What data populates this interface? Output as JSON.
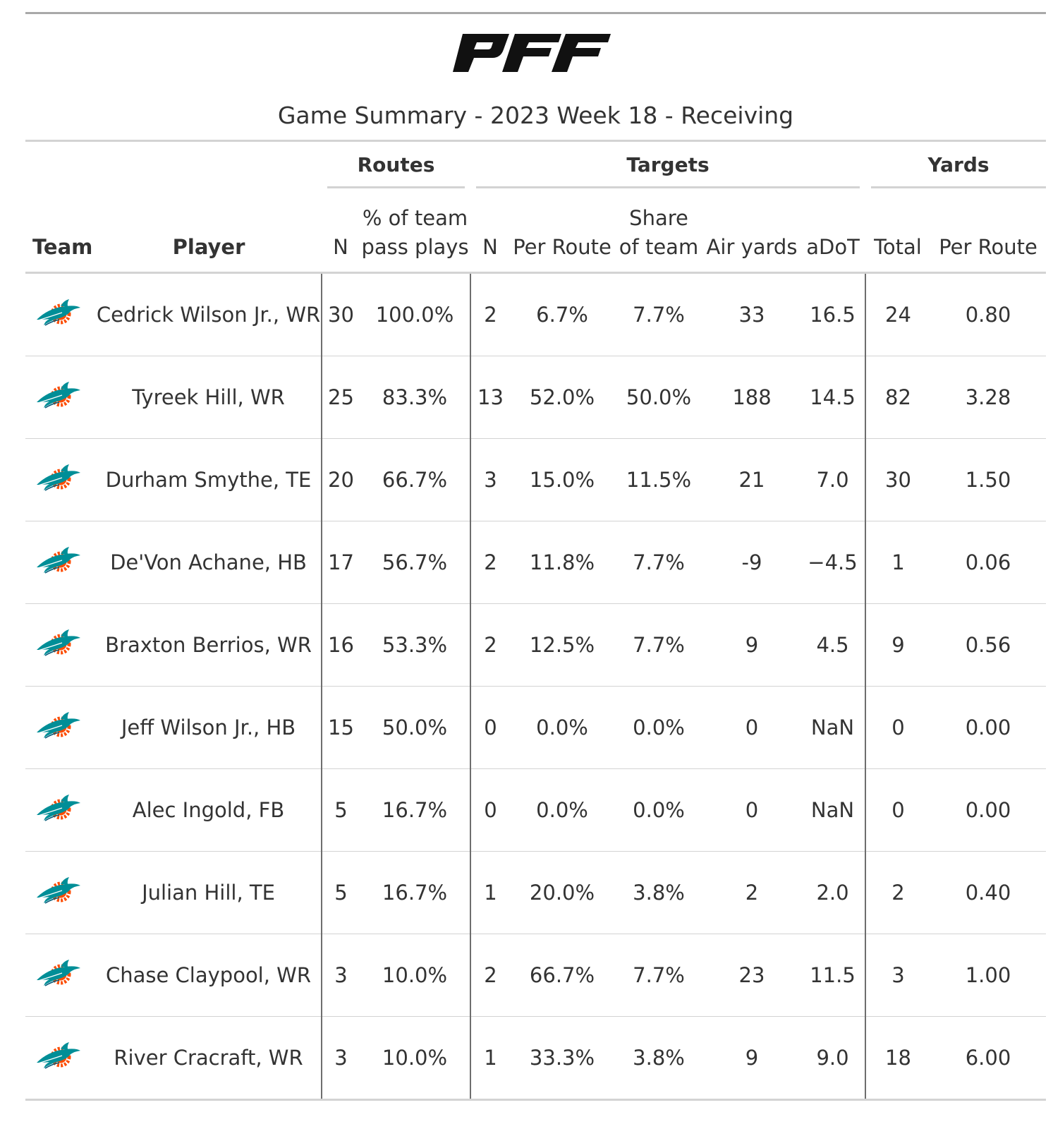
{
  "header": {
    "logo_text": "PFF",
    "title": "Game Summary - 2023 Week 18 - Receiving"
  },
  "table": {
    "spanners": {
      "routes": "Routes",
      "targets": "Targets",
      "yards": "Yards"
    },
    "columns": {
      "team": "Team",
      "player": "Player",
      "routes_n": "N",
      "routes_pct_1": "% of team",
      "routes_pct_2": "pass plays",
      "targets_n": "N",
      "targets_per_route": "Per Route",
      "share_1": "Share",
      "share_2": "of team",
      "air_yards": "Air yards",
      "adot": "aDoT",
      "yards_total": "Total",
      "yards_per_route": "Per Route"
    },
    "team_icon": "miami-dolphins-logo-icon",
    "rows": [
      {
        "player": "Cedrick Wilson Jr., WR",
        "routes_n": "30",
        "routes_pct": "100.0%",
        "targets_n": "2",
        "targets_per_route": "6.7%",
        "share": "7.7%",
        "air_yards": "33",
        "adot": "16.5",
        "yards_total": "24",
        "yards_per_route": "0.80"
      },
      {
        "player": "Tyreek Hill, WR",
        "routes_n": "25",
        "routes_pct": "83.3%",
        "targets_n": "13",
        "targets_per_route": "52.0%",
        "share": "50.0%",
        "air_yards": "188",
        "adot": "14.5",
        "yards_total": "82",
        "yards_per_route": "3.28"
      },
      {
        "player": "Durham Smythe, TE",
        "routes_n": "20",
        "routes_pct": "66.7%",
        "targets_n": "3",
        "targets_per_route": "15.0%",
        "share": "11.5%",
        "air_yards": "21",
        "adot": "7.0",
        "yards_total": "30",
        "yards_per_route": "1.50"
      },
      {
        "player": "De'Von Achane, HB",
        "routes_n": "17",
        "routes_pct": "56.7%",
        "targets_n": "2",
        "targets_per_route": "11.8%",
        "share": "7.7%",
        "air_yards": "-9",
        "adot": "−4.5",
        "yards_total": "1",
        "yards_per_route": "0.06"
      },
      {
        "player": "Braxton Berrios, WR",
        "routes_n": "16",
        "routes_pct": "53.3%",
        "targets_n": "2",
        "targets_per_route": "12.5%",
        "share": "7.7%",
        "air_yards": "9",
        "adot": "4.5",
        "yards_total": "9",
        "yards_per_route": "0.56"
      },
      {
        "player": "Jeff Wilson Jr., HB",
        "routes_n": "15",
        "routes_pct": "50.0%",
        "targets_n": "0",
        "targets_per_route": "0.0%",
        "share": "0.0%",
        "air_yards": "0",
        "adot": "NaN",
        "yards_total": "0",
        "yards_per_route": "0.00"
      },
      {
        "player": "Alec Ingold, FB",
        "routes_n": "5",
        "routes_pct": "16.7%",
        "targets_n": "0",
        "targets_per_route": "0.0%",
        "share": "0.0%",
        "air_yards": "0",
        "adot": "NaN",
        "yards_total": "0",
        "yards_per_route": "0.00"
      },
      {
        "player": "Julian Hill, TE",
        "routes_n": "5",
        "routes_pct": "16.7%",
        "targets_n": "1",
        "targets_per_route": "20.0%",
        "share": "3.8%",
        "air_yards": "2",
        "adot": "2.0",
        "yards_total": "2",
        "yards_per_route": "0.40"
      },
      {
        "player": "Chase Claypool, WR",
        "routes_n": "3",
        "routes_pct": "10.0%",
        "targets_n": "2",
        "targets_per_route": "66.7%",
        "share": "7.7%",
        "air_yards": "23",
        "adot": "11.5",
        "yards_total": "3",
        "yards_per_route": "1.00"
      },
      {
        "player": "River Cracraft, WR",
        "routes_n": "3",
        "routes_pct": "10.0%",
        "targets_n": "1",
        "targets_per_route": "33.3%",
        "share": "3.8%",
        "air_yards": "9",
        "adot": "9.0",
        "yards_total": "18",
        "yards_per_route": "6.00"
      }
    ]
  },
  "colors": {
    "dolphin_aqua": "#008e97",
    "dolphin_orange": "#fc4c02",
    "rule_gray": "#d3d3d3",
    "separator_gray": "#6e6e6e"
  }
}
